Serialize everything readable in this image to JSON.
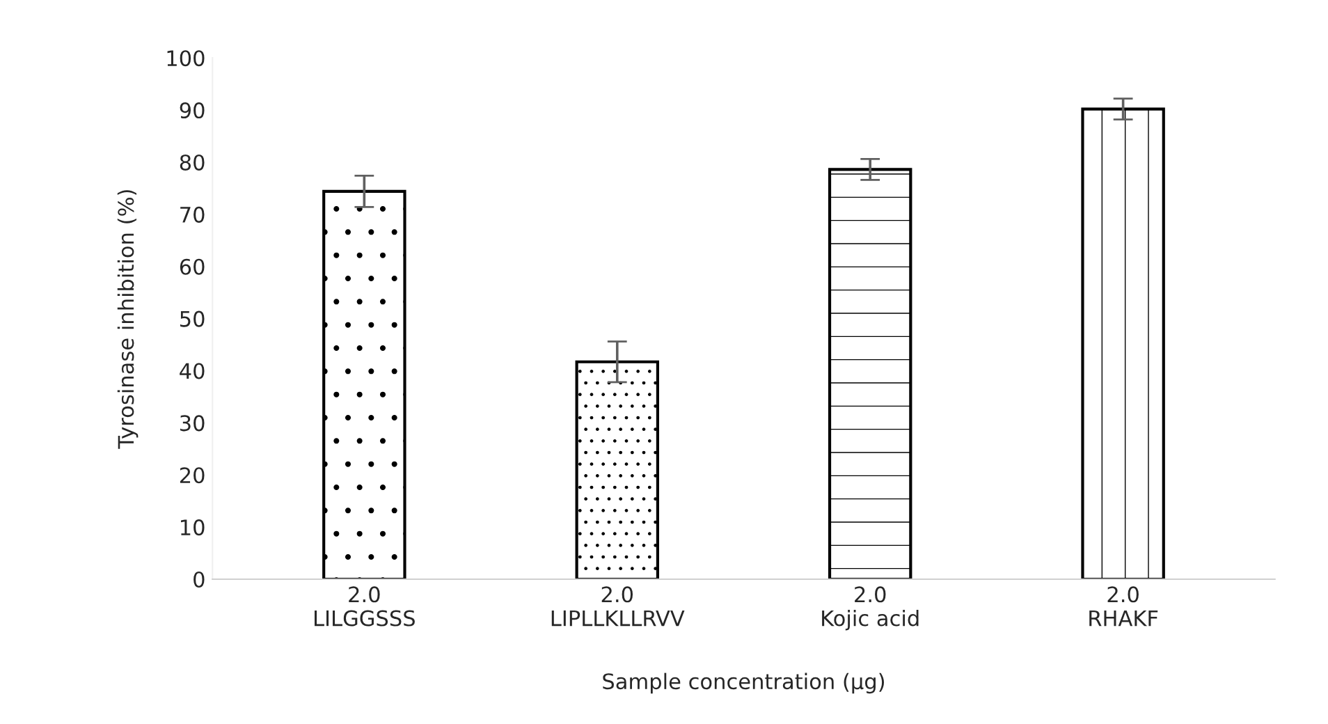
{
  "chart_data": {
    "type": "bar",
    "xlabel": "Sample concentration (µg)",
    "ylabel": "Tyrosinase inhibition (%)",
    "categories": [
      "2.0\nLILGGSSS",
      "2.0\nLIPLLKLLRVV",
      "2.0\nKojic acid",
      "2.0\nRHAKF"
    ],
    "values": [
      74.4,
      41.7,
      78.6,
      90.2
    ],
    "errors": [
      3,
      3.9,
      2,
      2
    ],
    "colors": [
      "#ffffff",
      "#ffffff",
      "#ffffff",
      "#ffffff"
    ],
    "ylim": [
      0,
      100
    ],
    "yticks": [
      0,
      10,
      20,
      30,
      40,
      50,
      60,
      70,
      80,
      90,
      100
    ],
    "grid": false,
    "legend": false
  }
}
